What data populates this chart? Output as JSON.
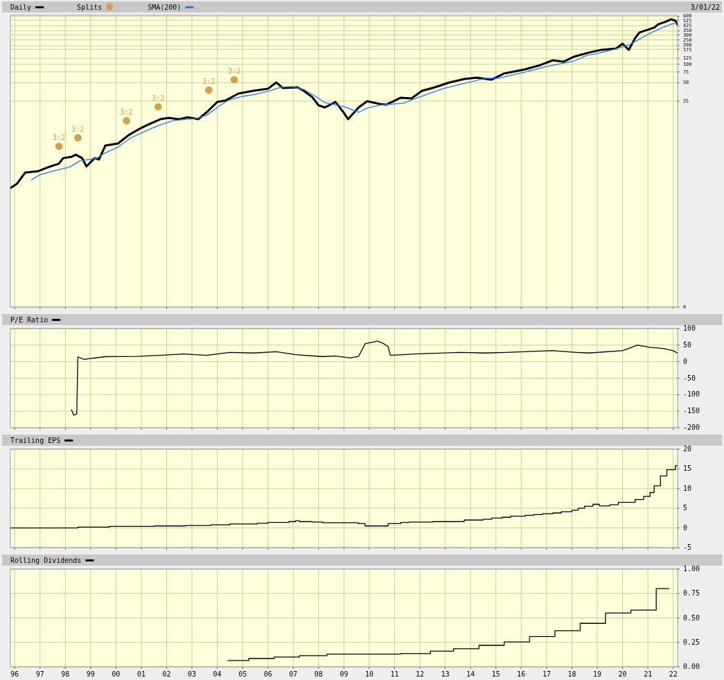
{
  "chart_data": [
    {
      "type": "line",
      "log": "y",
      "grid": true,
      "legend": "top left",
      "tick_labels": "y",
      "annotations": [
        "3/01/22"
      ],
      "xlim": [
        "1995-11-01",
        "2022-03-05"
      ],
      "xticks": [
        "1996",
        "1997",
        "1998",
        "1999",
        "2000",
        "2001",
        "2002",
        "2003",
        "2004",
        "2005",
        "2006",
        "2007",
        "2008",
        "2009",
        "2010",
        "2011",
        "2012",
        "2013",
        "2014",
        "2015",
        "2016",
        "2017",
        "2018",
        "2019",
        "2020",
        "2021",
        "2022"
      ],
      "ylim": [
        0.011,
        630
      ],
      "yticks": [
        600,
        525,
        425,
        350,
        300,
        250,
        200,
        175,
        125,
        100,
        75,
        50,
        25,
        {
          "value": 0.011,
          "label": "0"
        }
      ],
      "series": [
        {
          "name": "Daily",
          "color": "#000000",
          "x": [
            "1995-11",
            "1996-02",
            "1996-06",
            "1996-12",
            "1997-05",
            "1997-10",
            "1997-12",
            "1998-04",
            "1998-06",
            "1998-09",
            "1998-11",
            "1999-03",
            "1999-05",
            "1999-08",
            "2000-02",
            "2000-07",
            "2000-12",
            "2001-04",
            "2001-10",
            "2002-02",
            "2002-07",
            "2002-11",
            "2003-04",
            "2003-08",
            "2004-01",
            "2004-05",
            "2004-11",
            "2005-06",
            "2006-01",
            "2006-05",
            "2006-08",
            "2007-03",
            "2007-06",
            "2007-10",
            "2008-01",
            "2008-04",
            "2008-09",
            "2009-01",
            "2009-03",
            "2009-08",
            "2009-12",
            "2010-06",
            "2010-09",
            "2011-04",
            "2011-09",
            "2012-02",
            "2012-08",
            "2013-03",
            "2013-10",
            "2014-04",
            "2014-11",
            "2015-05",
            "2016-03",
            "2016-10",
            "2017-04",
            "2017-09",
            "2018-02",
            "2018-09",
            "2019-03",
            "2019-10",
            "2020-01",
            "2020-04",
            "2020-07",
            "2020-09",
            "2021-01",
            "2021-04",
            "2021-06",
            "2021-09",
            "2021-12",
            "2022-02",
            "2022-03"
          ],
          "values": [
            0.96,
            1.12,
            1.71,
            1.8,
            2.1,
            2.4,
            2.95,
            3.1,
            3.36,
            2.95,
            2.16,
            2.95,
            2.8,
            4.72,
            5.11,
            6.98,
            8.8,
            10.3,
            12.7,
            13.4,
            12.7,
            13.7,
            12.7,
            16.5,
            24.3,
            25.7,
            33.3,
            37.0,
            40.0,
            50.5,
            41.0,
            42.1,
            37.0,
            29.2,
            21.4,
            19.8,
            24.3,
            16.1,
            12.7,
            19.8,
            25.0,
            22.5,
            21.9,
            28.5,
            27.8,
            37.0,
            42.1,
            50.5,
            57.6,
            60.6,
            56.1,
            70.9,
            82.9,
            96.9,
            116,
            110,
            133,
            155,
            172,
            181,
            217,
            172,
            268,
            330,
            366,
            396,
            451,
            488,
            541,
            514,
            451
          ]
        },
        {
          "name": "Splits",
          "type": "scatter",
          "marker": "circle",
          "color": "#d4a04a",
          "x": [
            "1997-10",
            "1998-07",
            "2000-06",
            "2001-09",
            "2003-09",
            "2004-09"
          ],
          "values": [
            4.6,
            6.3,
            12,
            20.3,
            38,
            56
          ],
          "value_labels": [
            "3:2",
            "3:2",
            "3:2",
            "3:2",
            "3:2",
            "3:2"
          ]
        },
        {
          "name": "SMA(200)",
          "color": "#1f78ff",
          "x": [
            "1996-09",
            "1997-01",
            "1997-08",
            "1998-03",
            "1998-08",
            "1998-12",
            "1999-04",
            "1999-07",
            "2000-02",
            "2000-08",
            "2001-03",
            "2001-09",
            "2002-04",
            "2002-10",
            "2003-03",
            "2003-08",
            "2004-01",
            "2004-06",
            "2005-01",
            "2005-07",
            "2006-02",
            "2006-07",
            "2006-12",
            "2007-06",
            "2007-11",
            "2008-04",
            "2008-09",
            "2009-02",
            "2009-08",
            "2009-12",
            "2010-07",
            "2011-05",
            "2011-11",
            "2012-12",
            "2014-08",
            "2015-02",
            "2016-03",
            "2017-01",
            "2018-02",
            "2018-08",
            "2018-12",
            "2019-07",
            "2020-04",
            "2021-02",
            "2021-08",
            "2021-12",
            "2022-03"
          ],
          "values": [
            1.31,
            1.58,
            1.85,
            2.1,
            2.66,
            2.8,
            2.95,
            3.45,
            4.48,
            6.29,
            8.14,
            10.0,
            12.0,
            12.7,
            13.0,
            14.8,
            19.8,
            25.7,
            30.0,
            32.4,
            37.0,
            42.1,
            43.2,
            38.9,
            30.8,
            23.7,
            21.9,
            19.8,
            16.5,
            19.3,
            21.9,
            23.1,
            27.8,
            40.0,
            59.1,
            59.1,
            74.7,
            92.0,
            113,
            140,
            147,
            168,
            206,
            321,
            396,
            451,
            475
          ]
        }
      ]
    },
    {
      "type": "line",
      "grid": true,
      "legend": "top left",
      "tick_labels": "y",
      "xlim": [
        "1995-11-01",
        "2022-03-05"
      ],
      "xticks": [
        "1996",
        "1997",
        "1998",
        "1999",
        "2000",
        "2001",
        "2002",
        "2003",
        "2004",
        "2005",
        "2006",
        "2007",
        "2008",
        "2009",
        "2010",
        "2011",
        "2012",
        "2013",
        "2014",
        "2015",
        "2016",
        "2017",
        "2018",
        "2019",
        "2020",
        "2021",
        "2022"
      ],
      "ylim": [
        -200,
        100
      ],
      "yticks": [
        100,
        50,
        0,
        -50,
        -100,
        -150,
        -200
      ],
      "series": [
        {
          "name": "P/E Ratio",
          "color": "#000000",
          "x": [
            "1998-04",
            "1998-05",
            "1998-06-15",
            "1998-07",
            "1998-10",
            "1999-08",
            "2000-11",
            "2001-10",
            "2002-09",
            "2003-08",
            "2004-07",
            "2005-06",
            "2006-05",
            "2007-02",
            "2008-03",
            "2008-09",
            "2009-04",
            "2009-08",
            "2009-11",
            "2010-05",
            "2010-08",
            "2010-10",
            "2010-11",
            "2011-11",
            "2013-08",
            "2014-08",
            "2015-06",
            "2017-04",
            "2018-03",
            "2018-09",
            "2020-01",
            "2020-04",
            "2020-08",
            "2021-02",
            "2021-08",
            "2022-01",
            "2022-03"
          ],
          "values": [
            -146,
            -162,
            -159,
            14,
            7,
            15,
            16,
            19,
            23,
            19,
            28,
            26,
            30,
            21,
            15,
            17,
            11,
            16,
            54,
            62,
            54,
            45,
            19,
            23,
            28,
            26,
            28,
            33,
            28,
            26,
            33,
            40,
            50,
            43,
            40,
            33,
            26
          ]
        }
      ]
    },
    {
      "type": "step",
      "grid": true,
      "legend": "top left",
      "tick_labels": "y",
      "xlim": [
        "1995-11-01",
        "2022-03-05"
      ],
      "xticks": [
        "1996",
        "1997",
        "1998",
        "1999",
        "2000",
        "2001",
        "2002",
        "2003",
        "2004",
        "2005",
        "2006",
        "2007",
        "2008",
        "2009",
        "2010",
        "2011",
        "2012",
        "2013",
        "2014",
        "2015",
        "2016",
        "2017",
        "2018",
        "2019",
        "2020",
        "2021",
        "2022"
      ],
      "ylim": [
        -5,
        20
      ],
      "yticks": [
        20,
        15,
        10,
        5,
        0,
        -5
      ],
      "series": [
        {
          "name": "Trailing EPS",
          "color": "#000000",
          "x": [
            "1995-11",
            "1998-07",
            "1999-10",
            "2001-07",
            "2002-10",
            "2003-10",
            "2004-07",
            "2005-08",
            "2006-01",
            "2006-11",
            "2007-02",
            "2007-04",
            "2007-10",
            "2008-03",
            "2009-08",
            "2009-11",
            "2010-10",
            "2011-04",
            "2011-08",
            "2012-07",
            "2013-10",
            "2014-07",
            "2014-11",
            "2015-04",
            "2015-08",
            "2016-03",
            "2016-07",
            "2016-11",
            "2017-04",
            "2017-08",
            "2018-01",
            "2018-04",
            "2018-07",
            "2018-11",
            "2019-02",
            "2019-07",
            "2019-11",
            "2020-07",
            "2020-11",
            "2021-02",
            "2021-04",
            "2021-07",
            "2021-10",
            "2022-02",
            "2022-03"
          ],
          "values": [
            0,
            0.2,
            0.4,
            0.5,
            0.6,
            0.8,
            1.0,
            1.2,
            1.4,
            1.6,
            1.8,
            1.6,
            1.5,
            1.3,
            1.1,
            0.5,
            1.1,
            1.4,
            1.5,
            1.6,
            2.0,
            2.2,
            2.5,
            2.7,
            3.0,
            3.2,
            3.4,
            3.6,
            3.8,
            4.1,
            4.5,
            5.0,
            5.5,
            6.0,
            5.6,
            5.9,
            6.5,
            7.2,
            8.0,
            9.0,
            10.7,
            13.2,
            14.8,
            15.8,
            15.8
          ]
        }
      ]
    },
    {
      "type": "step",
      "grid": true,
      "legend": "top left",
      "xlim": [
        "1995-11-01",
        "2022-03-05"
      ],
      "xticks": [
        {
          "value": "1996",
          "label": "96"
        },
        {
          "value": "1997",
          "label": "97"
        },
        {
          "value": "1998",
          "label": "98"
        },
        {
          "value": "1999",
          "label": "99"
        },
        {
          "value": "2000",
          "label": "00"
        },
        {
          "value": "2001",
          "label": "01"
        },
        {
          "value": "2002",
          "label": "02"
        },
        {
          "value": "2003",
          "label": "03"
        },
        {
          "value": "2004",
          "label": "04"
        },
        {
          "value": "2005",
          "label": "05"
        },
        {
          "value": "2006",
          "label": "06"
        },
        {
          "value": "2007",
          "label": "07"
        },
        {
          "value": "2008",
          "label": "08"
        },
        {
          "value": "2009",
          "label": "09"
        },
        {
          "value": "2010",
          "label": "10"
        },
        {
          "value": "2011",
          "label": "11"
        },
        {
          "value": "2012",
          "label": "12"
        },
        {
          "value": "2013",
          "label": "13"
        },
        {
          "value": "2014",
          "label": "14"
        },
        {
          "value": "2015",
          "label": "15"
        },
        {
          "value": "2016",
          "label": "16"
        },
        {
          "value": "2017",
          "label": "17"
        },
        {
          "value": "2018",
          "label": "18"
        },
        {
          "value": "2019",
          "label": "19"
        },
        {
          "value": "2020",
          "label": "20"
        },
        {
          "value": "2021",
          "label": "21"
        },
        {
          "value": "2022",
          "label": "22"
        }
      ],
      "ylim": [
        0,
        1
      ],
      "yticks": [
        {
          "value": 1,
          "label": "1.00"
        },
        {
          "value": 0.75,
          "label": "0.75"
        },
        {
          "value": 0.5,
          "label": "0.50"
        },
        {
          "value": 0.25,
          "label": "0.25"
        },
        {
          "value": 0,
          "label": "0.00"
        }
      ],
      "series": [
        {
          "name": "Rolling Dividends",
          "color": "#000000",
          "x": [
            "2004-06",
            "2005-04",
            "2006-04",
            "2007-04",
            "2008-05",
            "2011-04",
            "2012-06",
            "2013-05",
            "2014-05",
            "2015-05",
            "2016-05",
            "2017-05",
            "2018-05",
            "2019-05",
            "2020-05",
            "2021-05",
            "2021-11"
          ],
          "values": [
            0.065,
            0.085,
            0.1,
            0.115,
            0.13,
            0.135,
            0.16,
            0.185,
            0.22,
            0.255,
            0.31,
            0.37,
            0.445,
            0.55,
            0.58,
            0.8,
            0.8
          ]
        }
      ]
    }
  ]
}
